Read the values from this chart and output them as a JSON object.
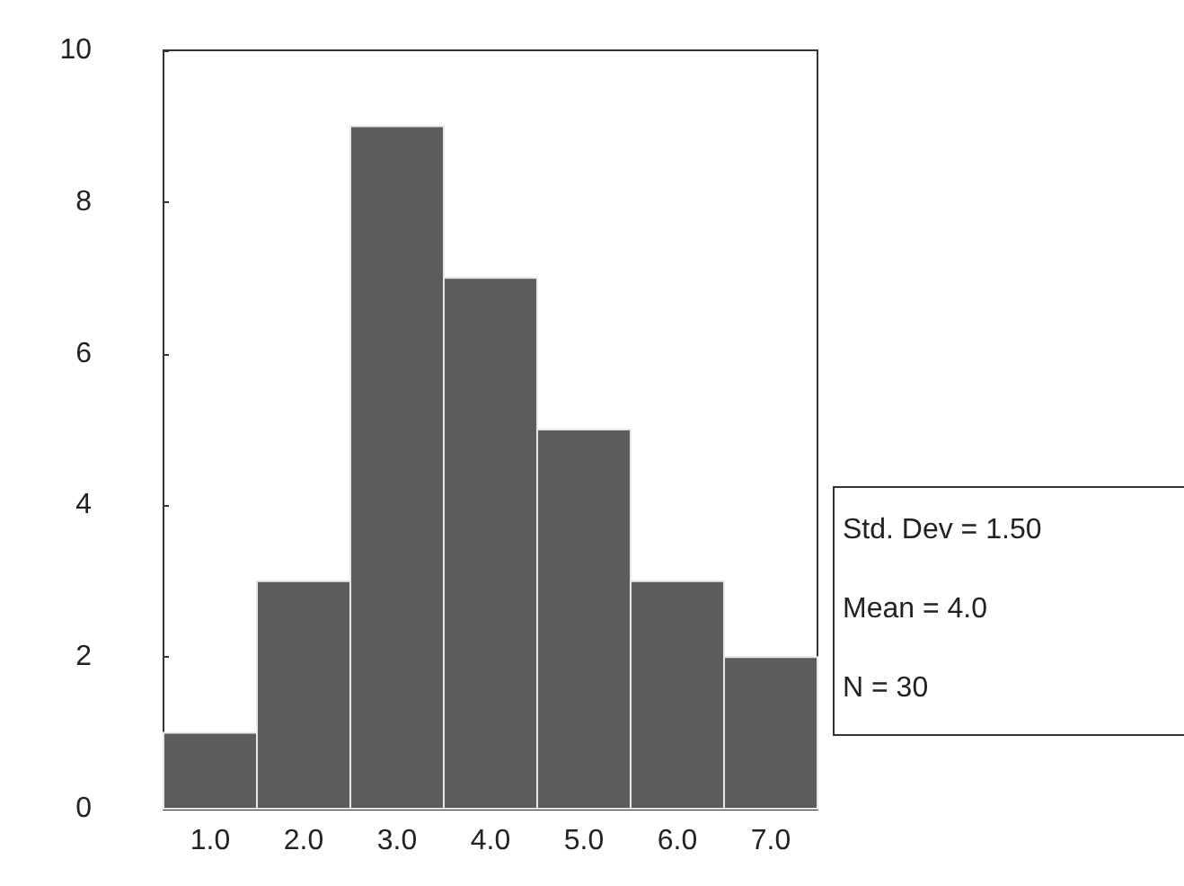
{
  "chart_data": {
    "type": "histogram",
    "bins": [
      0.5,
      1.5,
      2.5,
      3.5,
      4.5,
      5.5,
      6.5,
      7.5
    ],
    "values": [
      1,
      3,
      9,
      7,
      5,
      3,
      2
    ],
    "color": "#5c5c5c",
    "xlim": [
      0.5,
      7.5
    ],
    "xticks": [
      {
        "value": 1,
        "label": "1.0"
      },
      {
        "value": 2,
        "label": "2.0"
      },
      {
        "value": 3,
        "label": "3.0"
      },
      {
        "value": 4,
        "label": "4.0"
      },
      {
        "value": 5,
        "label": "5.0"
      },
      {
        "value": 6,
        "label": "6.0"
      },
      {
        "value": 7,
        "label": "7.0"
      }
    ],
    "ylim": [
      0,
      10
    ],
    "yticks": [
      0,
      2,
      4,
      6,
      8,
      10
    ],
    "grid": false,
    "annotations": [
      "Std. Dev = 1.50",
      "Mean = 4.0",
      "N = 30"
    ]
  }
}
